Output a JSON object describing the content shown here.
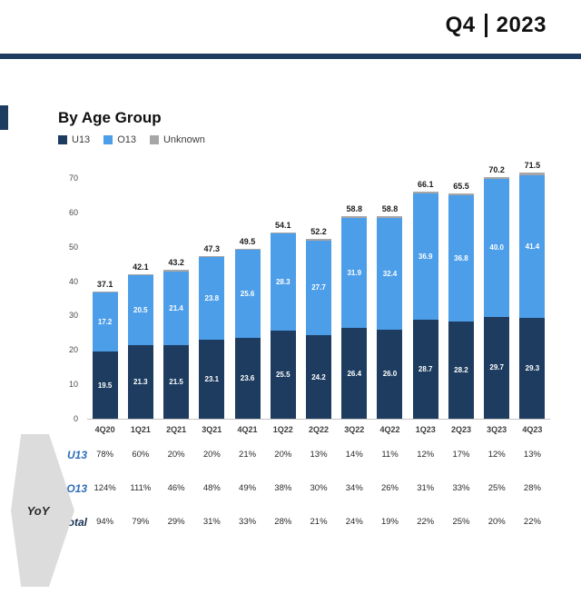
{
  "header": {
    "quarter": "Q4",
    "year": "2023"
  },
  "section": {
    "title": "By Age Group"
  },
  "legend": [
    {
      "label": "U13",
      "color": "#1d3c5f"
    },
    {
      "label": "O13",
      "color": "#4d9ee9"
    },
    {
      "label": "Unknown",
      "color": "#a6a6a6"
    }
  ],
  "colors": {
    "accent_navy": "#1d3c5f",
    "u13": "#1d3c5f",
    "o13": "#4d9ee9",
    "unknown": "#a6a6a6",
    "yoy_blue": "#2e6db8",
    "axis_line": "#c4c4c4",
    "text_dark": "#1c1c1c"
  },
  "chart_data": {
    "type": "bar",
    "stacked": true,
    "title": "By Age Group",
    "xlabel": "",
    "ylabel": "",
    "ylim": [
      0,
      70
    ],
    "yticks": [
      0,
      10,
      20,
      30,
      40,
      50,
      60,
      70
    ],
    "grid": false,
    "legend_position": "top-left",
    "categories": [
      "4Q20",
      "1Q21",
      "2Q21",
      "3Q21",
      "4Q21",
      "1Q22",
      "2Q22",
      "3Q22",
      "4Q22",
      "1Q23",
      "2Q23",
      "3Q23",
      "4Q23"
    ],
    "series": [
      {
        "name": "U13",
        "color": "#1d3c5f",
        "values": [
          19.5,
          21.3,
          21.5,
          23.1,
          23.6,
          25.5,
          24.2,
          26.4,
          26.0,
          28.7,
          28.2,
          29.7,
          29.3
        ]
      },
      {
        "name": "O13",
        "color": "#4d9ee9",
        "values": [
          17.2,
          20.5,
          21.4,
          23.8,
          25.6,
          28.3,
          27.7,
          31.9,
          32.4,
          36.9,
          36.8,
          40.0,
          41.4
        ]
      },
      {
        "name": "Unknown",
        "color": "#a6a6a6",
        "values": [
          0.4,
          0.3,
          0.3,
          0.4,
          0.3,
          0.3,
          0.3,
          0.5,
          0.4,
          0.5,
          0.5,
          0.5,
          0.8
        ]
      }
    ],
    "totals": [
      37.1,
      42.1,
      43.2,
      47.3,
      49.5,
      54.1,
      52.2,
      58.8,
      58.8,
      66.1,
      65.5,
      70.2,
      71.5
    ]
  },
  "yoy": {
    "label": "YoY",
    "rows": [
      {
        "label": "U13",
        "values": [
          "78%",
          "60%",
          "20%",
          "20%",
          "21%",
          "20%",
          "13%",
          "14%",
          "11%",
          "12%",
          "17%",
          "12%",
          "13%"
        ]
      },
      {
        "label": "O13",
        "values": [
          "124%",
          "111%",
          "46%",
          "48%",
          "49%",
          "38%",
          "30%",
          "34%",
          "26%",
          "31%",
          "33%",
          "25%",
          "28%"
        ]
      },
      {
        "label": "Total",
        "values": [
          "94%",
          "79%",
          "29%",
          "31%",
          "33%",
          "28%",
          "21%",
          "24%",
          "19%",
          "22%",
          "25%",
          "20%",
          "22%"
        ]
      }
    ]
  }
}
